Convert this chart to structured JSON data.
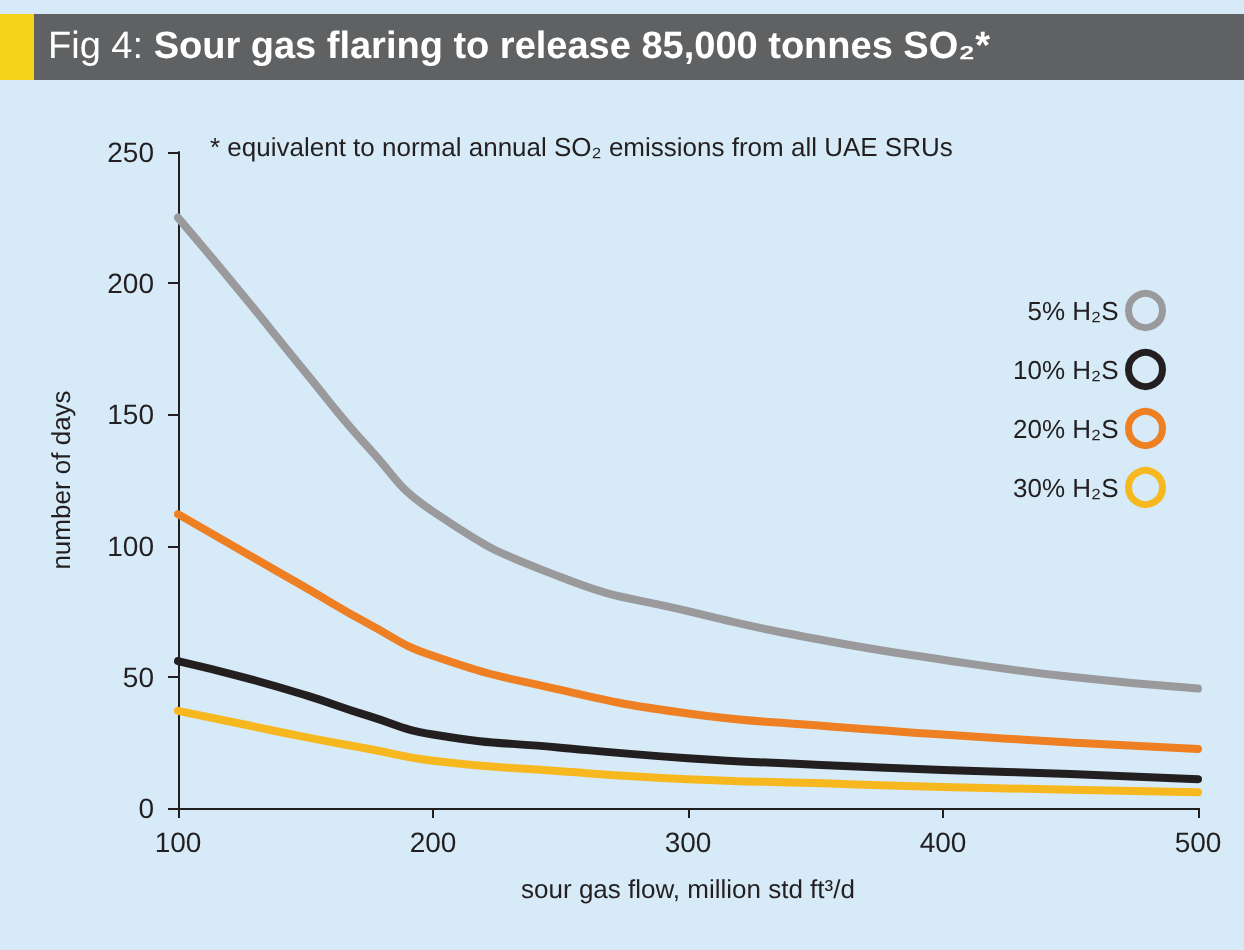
{
  "chart_data": {
    "type": "line",
    "title": "Fig 4: Sour gas flaring to release 85,000 tonnes SO₂*",
    "xlabel": "sour gas flow, million std ft³/d",
    "ylabel": "number of days",
    "annotations": [
      "* equivalent to normal annual SO₂ emissions from all UAE SRUs"
    ],
    "x": [
      100,
      125,
      150,
      175,
      200,
      250,
      300,
      350,
      400,
      450,
      500
    ],
    "series": [
      {
        "name": "5% H₂S",
        "color": "#9a9a9c",
        "values": [
          225,
          196,
          166,
          137,
          113,
          88,
          75,
          64.5,
          56.5,
          50,
          45.5
        ]
      },
      {
        "name": "10% H₂S",
        "color": "#231f20",
        "values": [
          56,
          50,
          43,
          35,
          28,
          23,
          19,
          16.5,
          14.5,
          13,
          11
        ]
      },
      {
        "name": "20% H₂S",
        "color": "#ee7f22",
        "values": [
          112,
          98,
          84,
          70,
          58,
          45,
          36,
          31.5,
          28,
          25,
          22.5
        ]
      },
      {
        "name": "30% H₂S",
        "color": "#f7b81f",
        "values": [
          37,
          32,
          27,
          22.5,
          18,
          14,
          11,
          9.5,
          8,
          7,
          6
        ]
      }
    ],
    "xlim": [
      100,
      500
    ],
    "xticks": [
      100,
      200,
      300,
      400,
      500
    ],
    "ylim": [
      0,
      250
    ],
    "yticks": [
      0,
      50,
      100,
      150,
      200,
      250
    ],
    "grid": false,
    "legend": "top right",
    "marker": "none",
    "line_style": "solid"
  }
}
